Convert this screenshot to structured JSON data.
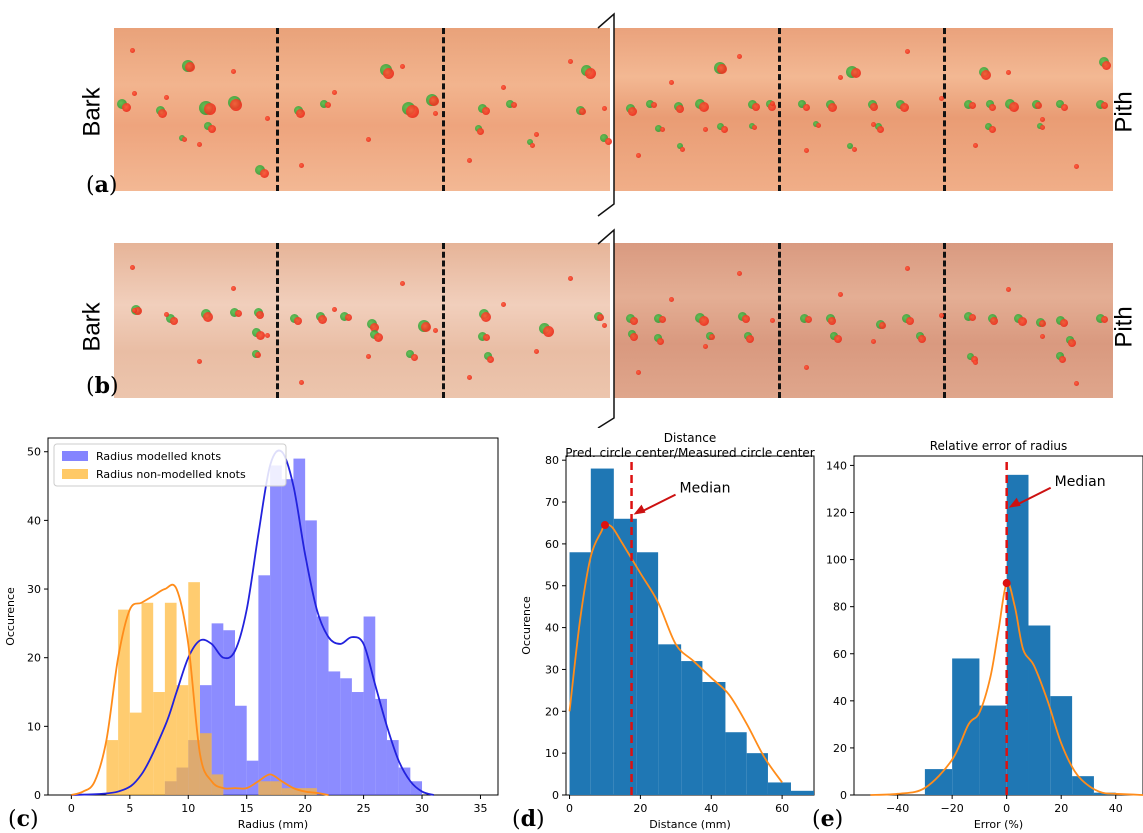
{
  "labels": {
    "a": "a",
    "b": "b",
    "c": "c",
    "d": "d",
    "e": "e",
    "bark": "Bark",
    "pith": "Pith"
  },
  "colors": {
    "modelled": "#5b5bff",
    "non_modelled": "#ffb733",
    "kde_blue": "#2222dd",
    "kde_orange": "#ff8c1a",
    "hist_blue": "#1f77b4",
    "median_red": "#dd1111"
  },
  "chart_data": [
    {
      "id": "c",
      "type": "bar",
      "title": "",
      "xlabel": "Radius (mm)",
      "ylabel": "Occurence",
      "xlim": [
        -2,
        36.5
      ],
      "ylim": [
        0,
        52
      ],
      "xticks": [
        0,
        5,
        10,
        15,
        20,
        25,
        30,
        35
      ],
      "yticks": [
        0,
        10,
        20,
        30,
        40,
        50
      ],
      "legend": "top-left",
      "series": [
        {
          "name": "Radius modelled knots",
          "bins": [
            [
              8,
              9,
              2
            ],
            [
              9,
              10,
              4
            ],
            [
              10,
              11,
              8
            ],
            [
              11,
              12,
              16
            ],
            [
              12,
              13,
              25
            ],
            [
              13,
              14,
              24
            ],
            [
              14,
              15,
              13
            ],
            [
              15,
              16,
              5
            ],
            [
              16,
              17,
              32
            ],
            [
              17,
              18,
              48
            ],
            [
              18,
              19,
              46
            ],
            [
              19,
              20,
              49
            ],
            [
              20,
              21,
              40
            ],
            [
              21,
              22,
              26
            ],
            [
              22,
              23,
              18
            ],
            [
              23,
              24,
              17
            ],
            [
              24,
              25,
              15
            ],
            [
              25,
              26,
              26
            ],
            [
              26,
              27,
              14
            ],
            [
              27,
              28,
              8
            ],
            [
              28,
              29,
              4
            ],
            [
              29,
              30,
              2
            ]
          ]
        },
        {
          "name": "Radius non-modelled knots",
          "bins": [
            [
              3,
              4,
              8
            ],
            [
              4,
              5,
              27
            ],
            [
              5,
              6,
              12
            ],
            [
              6,
              7,
              28
            ],
            [
              7,
              8,
              15
            ],
            [
              8,
              9,
              28
            ],
            [
              9,
              10,
              16
            ],
            [
              10,
              11,
              31
            ],
            [
              11,
              12,
              9
            ],
            [
              12,
              13,
              3
            ],
            [
              16,
              17,
              2
            ],
            [
              17,
              18,
              2
            ],
            [
              18,
              19,
              1
            ],
            [
              19,
              20,
              1
            ],
            [
              20,
              21,
              1
            ]
          ]
        }
      ],
      "kde": [
        {
          "name": "modelled",
          "x": [
            0,
            4,
            6,
            8,
            9,
            10,
            11,
            12,
            13,
            14,
            15,
            16,
            17,
            18,
            19,
            20,
            21,
            22,
            23,
            24,
            25,
            26,
            27,
            28,
            29,
            30,
            31
          ],
          "y": [
            0,
            0.5,
            3,
            10,
            15,
            20,
            22.5,
            22,
            20,
            21,
            27,
            38,
            48,
            50,
            45,
            35,
            27,
            23,
            22,
            23,
            22,
            16,
            10,
            5,
            2,
            0.5,
            0
          ]
        },
        {
          "name": "non-modelled",
          "x": [
            0,
            1,
            2,
            3,
            4,
            5,
            6,
            7,
            8,
            9,
            10,
            11,
            12,
            13,
            14,
            15,
            16,
            17,
            18,
            19,
            20,
            21,
            22
          ],
          "y": [
            0,
            0.5,
            2,
            8,
            20,
            27,
            28,
            29,
            30,
            30,
            22,
            6,
            2,
            1,
            1,
            1,
            2,
            3,
            2,
            1,
            0.5,
            0.3,
            0
          ]
        }
      ]
    },
    {
      "id": "d",
      "type": "bar",
      "title": "Distance\nPred. circle center/Measured circle center",
      "title_lines": [
        "Distance",
        "Pred. circle center/Measured circle center"
      ],
      "xlabel": "Distance (mm)",
      "ylabel": "Occurence",
      "xlim": [
        -1,
        69
      ],
      "ylim": [
        0,
        81
      ],
      "xticks": [
        0,
        20,
        40,
        60
      ],
      "yticks": [
        0,
        10,
        20,
        30,
        40,
        50,
        60,
        70,
        80
      ],
      "bins": [
        [
          0,
          6,
          58
        ],
        [
          6,
          12.5,
          78
        ],
        [
          12.5,
          19,
          66
        ],
        [
          19,
          25,
          58
        ],
        [
          25,
          31.5,
          36
        ],
        [
          31.5,
          37.5,
          32
        ],
        [
          37.5,
          44,
          27
        ],
        [
          44,
          50,
          15
        ],
        [
          50,
          56,
          10
        ],
        [
          56,
          62.5,
          3
        ],
        [
          62.5,
          69,
          1
        ]
      ],
      "kde": {
        "x": [
          0,
          3,
          6,
          9,
          10,
          12,
          15,
          20,
          25,
          30,
          35,
          40,
          45,
          50,
          55,
          60
        ],
        "y": [
          20,
          42,
          57,
          63,
          64.5,
          64,
          60,
          53,
          46,
          36,
          32,
          28,
          24,
          17,
          9,
          3
        ]
      },
      "median": 17.5,
      "median_point": [
        10,
        64.5
      ],
      "annotation": "Median"
    },
    {
      "id": "e",
      "type": "bar",
      "title": "Relative error of radius",
      "xlabel": "Error (%)",
      "ylabel": "",
      "xlim": [
        -56,
        50
      ],
      "ylim": [
        0,
        144
      ],
      "xticks": [
        -40,
        -20,
        0,
        20,
        40
      ],
      "yticks": [
        0,
        20,
        40,
        60,
        80,
        100,
        120,
        140
      ],
      "bins": [
        [
          -30,
          -20,
          11
        ],
        [
          -20,
          -10,
          58
        ],
        [
          -10,
          0,
          38
        ],
        [
          0,
          8,
          136
        ],
        [
          8,
          16,
          72
        ],
        [
          16,
          24,
          42
        ],
        [
          24,
          32,
          8
        ],
        [
          32,
          40,
          1
        ]
      ],
      "kde": {
        "x": [
          -50,
          -40,
          -30,
          -20,
          -14,
          -10,
          -6,
          -3,
          0,
          3,
          6,
          10,
          15,
          20,
          25,
          30,
          35,
          40,
          50
        ],
        "y": [
          0,
          0.5,
          3,
          15,
          30,
          35,
          50,
          70,
          90,
          80,
          62,
          55,
          40,
          22,
          10,
          4,
          1,
          0.5,
          0
        ]
      },
      "median": 0,
      "median_point": [
        0,
        90
      ],
      "annotation": "Median"
    }
  ]
}
